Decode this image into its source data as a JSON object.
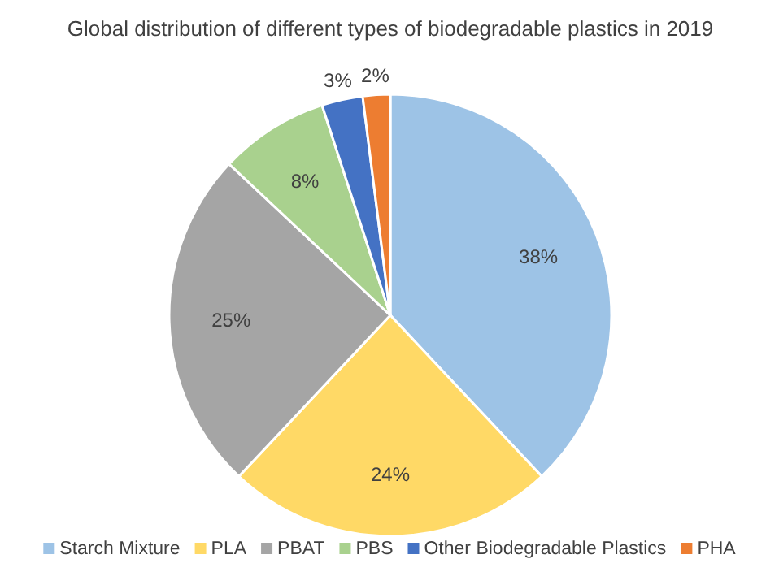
{
  "chart_data": {
    "type": "pie",
    "title": "Global distribution of different types of biodegradable plastics in 2019",
    "categories": [
      "Starch Mixture",
      "PLA",
      "PBAT",
      "PBS",
      "Other Biodegradable Plastics",
      "PHA"
    ],
    "values": [
      38,
      24,
      25,
      8,
      3,
      2
    ],
    "colors": [
      "#9dc3e6",
      "#ffd966",
      "#a5a5a5",
      "#a9d18e",
      "#4472c4",
      "#ed7d31"
    ],
    "value_labels": [
      "38%",
      "24%",
      "25%",
      "8%",
      "3%",
      "2%"
    ],
    "legend": "bottom"
  }
}
